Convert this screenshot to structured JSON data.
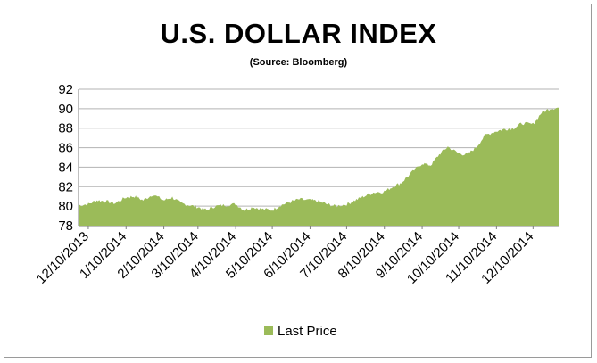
{
  "chart_data": {
    "type": "area",
    "title": "U.S. DOLLAR INDEX",
    "subtitle": "(Source: Bloomberg)",
    "xlabel": "",
    "ylabel": "",
    "ylim": [
      78,
      92
    ],
    "yticks": [
      78,
      80,
      82,
      84,
      86,
      88,
      90,
      92
    ],
    "xticks": [
      "12/10/2013",
      "1/10/2014",
      "2/10/2014",
      "3/10/2014",
      "4/10/2014",
      "5/10/2014",
      "6/10/2014",
      "7/10/2014",
      "8/10/2014",
      "9/10/2014",
      "10/10/2014",
      "11/10/2014",
      "12/10/2014"
    ],
    "grid": "horizontal",
    "legend": "bottom",
    "series": [
      {
        "name": "Last Price",
        "color": "#9bbb59",
        "x": [
          "2013-12-02",
          "2013-12-10",
          "2013-12-17",
          "2013-12-24",
          "2014-01-01",
          "2014-01-10",
          "2014-01-17",
          "2014-01-24",
          "2014-02-01",
          "2014-02-10",
          "2014-02-17",
          "2014-02-24",
          "2014-03-03",
          "2014-03-10",
          "2014-03-17",
          "2014-03-24",
          "2014-04-01",
          "2014-04-10",
          "2014-04-17",
          "2014-04-24",
          "2014-05-01",
          "2014-05-10",
          "2014-05-17",
          "2014-05-24",
          "2014-06-01",
          "2014-06-10",
          "2014-06-17",
          "2014-06-24",
          "2014-07-01",
          "2014-07-10",
          "2014-07-17",
          "2014-07-24",
          "2014-08-01",
          "2014-08-10",
          "2014-08-17",
          "2014-08-24",
          "2014-09-01",
          "2014-09-10",
          "2014-09-17",
          "2014-09-24",
          "2014-10-01",
          "2014-10-10",
          "2014-10-17",
          "2014-10-24",
          "2014-11-01",
          "2014-11-10",
          "2014-11-17",
          "2014-11-24",
          "2014-12-01",
          "2014-12-10",
          "2014-12-17",
          "2014-12-24",
          "2014-12-31"
        ],
        "values": [
          80.1,
          80.2,
          80.6,
          80.5,
          80.3,
          80.9,
          81.0,
          80.6,
          81.2,
          80.6,
          80.9,
          80.3,
          80.1,
          79.9,
          79.6,
          80.0,
          80.1,
          80.2,
          79.6,
          79.9,
          79.7,
          79.6,
          80.1,
          80.4,
          80.7,
          80.6,
          80.5,
          80.2,
          80.0,
          80.2,
          80.6,
          81.0,
          81.4,
          81.5,
          82.0,
          82.4,
          83.4,
          84.4,
          84.2,
          85.3,
          86.1,
          85.4,
          85.3,
          86.0,
          87.3,
          87.7,
          87.9,
          88.0,
          88.5,
          88.4,
          89.6,
          90.0,
          90.1
        ]
      }
    ]
  }
}
